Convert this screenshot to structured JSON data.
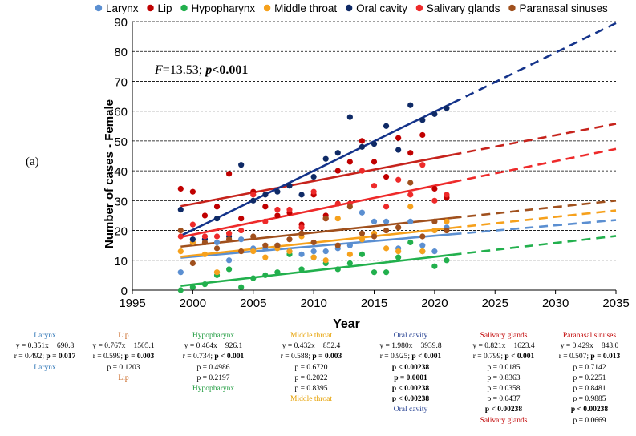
{
  "panel_label": "(a)",
  "chart_data": {
    "type": "scatter",
    "ylabel": "Number of cases - Female",
    "xlabel": "Year",
    "xlim": [
      1995,
      2035
    ],
    "ylim": [
      0,
      90
    ],
    "x_ticks": [
      "1995",
      "2000",
      "2005",
      "2010",
      "2015",
      "2020",
      "2025",
      "2030",
      "2035"
    ],
    "y_ticks": [
      "0",
      "10",
      "20",
      "30",
      "40",
      "50",
      "60",
      "70",
      "80",
      "90"
    ],
    "grid": "horizontal dashed",
    "legend_position": "top",
    "annotation": {
      "f_label": "F",
      "f_value": "=13.53; ",
      "p_label": "p",
      "p_value": "<0.001"
    },
    "series": [
      {
        "name": "Larynx",
        "color": "#5b8fd1",
        "fit_color": "#5b8fd1",
        "slope": 0.351,
        "intercept": -690.8,
        "x": [
          1999,
          2000,
          2001,
          2002,
          2003,
          2004,
          2005,
          2006,
          2007,
          2008,
          2009,
          2010,
          2011,
          2012,
          2013,
          2014,
          2015,
          2016,
          2017,
          2018,
          2019,
          2020,
          2021
        ],
        "y": [
          6,
          16,
          17,
          16,
          10,
          17,
          14,
          14,
          15,
          13,
          12,
          13,
          13,
          14,
          15,
          26,
          23,
          23,
          14,
          23,
          15,
          13,
          21
        ]
      },
      {
        "name": "Lip",
        "color": "#c00000",
        "fit_color": "#c6231c",
        "slope": 0.767,
        "intercept": -1505.1,
        "x": [
          1999,
          2000,
          2001,
          2002,
          2003,
          2004,
          2005,
          2006,
          2007,
          2008,
          2009,
          2010,
          2011,
          2012,
          2013,
          2014,
          2015,
          2016,
          2017,
          2018,
          2019,
          2020,
          2021
        ],
        "y": [
          34,
          33,
          25,
          28,
          39,
          24,
          33,
          28,
          25,
          26,
          22,
          32,
          25,
          40,
          43,
          50,
          43,
          38,
          51,
          46,
          52,
          34,
          31
        ]
      },
      {
        "name": "Hypopharynx",
        "color": "#22b04d",
        "fit_color": "#22b04d",
        "slope": 0.464,
        "intercept": -926.1,
        "x": [
          1999,
          2000,
          2001,
          2002,
          2003,
          2004,
          2005,
          2006,
          2007,
          2008,
          2009,
          2010,
          2011,
          2012,
          2013,
          2014,
          2015,
          2016,
          2017,
          2018,
          2019,
          2020,
          2021
        ],
        "y": [
          0,
          1,
          2,
          5,
          7,
          1,
          4,
          5,
          6,
          12,
          7,
          11,
          9,
          7,
          9,
          12,
          6,
          6,
          11,
          16,
          13,
          8,
          10
        ]
      },
      {
        "name": "Middle throat",
        "color": "#f6a11c",
        "fit_color": "#f6a11c",
        "slope": 0.432,
        "intercept": -852.4,
        "x": [
          1999,
          2000,
          2001,
          2002,
          2003,
          2004,
          2005,
          2006,
          2007,
          2008,
          2009,
          2010,
          2011,
          2012,
          2013,
          2014,
          2015,
          2016,
          2017,
          2018,
          2019,
          2020,
          2021
        ],
        "y": [
          13,
          16,
          12,
          6,
          19,
          13,
          13,
          11,
          14,
          13,
          18,
          11,
          10,
          24,
          12,
          17,
          19,
          14,
          13,
          28,
          13,
          20,
          23
        ]
      },
      {
        "name": "Oral cavity",
        "color": "#0f2a66",
        "fit_color": "#14338a",
        "slope": 1.98,
        "intercept": -3939.8,
        "x": [
          1999,
          2000,
          2001,
          2002,
          2003,
          2004,
          2005,
          2006,
          2007,
          2008,
          2009,
          2010,
          2011,
          2012,
          2013,
          2014,
          2015,
          2016,
          2017,
          2018,
          2019,
          2020,
          2021
        ],
        "y": [
          27,
          17,
          17,
          24,
          18,
          42,
          30,
          32,
          33,
          35,
          32,
          38,
          44,
          46,
          58,
          48,
          49,
          55,
          47,
          62,
          57,
          59,
          61
        ]
      },
      {
        "name": "Salivary glands",
        "color": "#ee2a2a",
        "fit_color": "#ee2a2a",
        "slope": 0.821,
        "intercept": -1623.4,
        "x": [
          1999,
          2000,
          2001,
          2002,
          2003,
          2004,
          2005,
          2006,
          2007,
          2008,
          2009,
          2010,
          2011,
          2012,
          2013,
          2014,
          2015,
          2016,
          2017,
          2018,
          2019,
          2020,
          2021
        ],
        "y": [
          18,
          22,
          18,
          18,
          19,
          20,
          32,
          23,
          27,
          27,
          21,
          33,
          24,
          29,
          29,
          40,
          35,
          28,
          37,
          32,
          42,
          30,
          32
        ]
      },
      {
        "name": "Paranasal sinuses",
        "color": "#a0501d",
        "fit_color": "#a0501d",
        "slope": 0.429,
        "intercept": -843.0,
        "x": [
          1999,
          2000,
          2001,
          2002,
          2003,
          2004,
          2005,
          2006,
          2007,
          2008,
          2009,
          2010,
          2011,
          2012,
          2013,
          2014,
          2015,
          2016,
          2017,
          2018,
          2019,
          2020,
          2021
        ],
        "y": [
          20,
          9,
          16,
          14,
          17,
          13,
          18,
          15,
          15,
          17,
          19,
          16,
          24,
          15,
          28,
          19,
          18,
          20,
          21,
          36,
          18,
          23,
          20
        ]
      }
    ]
  },
  "stats": [
    {
      "name": "Larynx",
      "color": "#2e75b6",
      "eq": "y = 0.351x − 690.8",
      "r": "r = 0.492; ",
      "p": "p = 0.017",
      "footer": "Larynx",
      "rows": []
    },
    {
      "name": "Lip",
      "color": "#c55a11",
      "eq": "y = 0.767x − 1505.1",
      "r": "r = 0.599; ",
      "p": "p = 0.003",
      "footer": "Lip",
      "rows": [
        "p = 0.1203"
      ]
    },
    {
      "name": "Hypopharynx",
      "color": "#1e9b3e",
      "eq": "y = 0.464x − 926.1",
      "r": "r = 0.734; ",
      "p": "p < 0.001",
      "footer": "Hypopharynx",
      "rows": [
        "p = 0.4986",
        "p = 0.2197"
      ]
    },
    {
      "name": "Middle throat",
      "color": "#e6a000",
      "eq": "y = 0.432x − 852.4",
      "r": "r = 0.588; ",
      "p": "p = 0.003",
      "footer": "Middle throat",
      "rows": [
        "p = 0.6720",
        "p = 0.2022",
        "p = 0.8395"
      ]
    },
    {
      "name": "Oral cavity",
      "color": "#1f3b8f",
      "eq": "y = 1.980x − 3939.8",
      "r": "r = 0.925; ",
      "p": "p < 0.001",
      "footer": "Oral cavity",
      "rows": [
        "p < 0.00238",
        "p = 0.0001",
        "p < 0.00238",
        "p < 0.00238"
      ]
    },
    {
      "name": "Salivary glands",
      "color": "#c00000",
      "eq": "y = 0.821x − 1623.4",
      "r": "r = 0.799; ",
      "p": "p < 0.001",
      "footer": "Salivary glands",
      "rows": [
        "p = 0.0185",
        "p = 0.8363",
        "p = 0.0358",
        "p = 0.0437",
        "p < 0.00238"
      ]
    },
    {
      "name": "Paranasal sinuses",
      "color": "#c00000",
      "eq": "y = 0.429x − 843.0",
      "r": "r = 0.507; ",
      "p": "p = 0.013",
      "footer": "",
      "rows": [
        "p = 0.7142",
        "p = 0.2251",
        "p = 0.8481",
        "p = 0.9885",
        "p < 0.00238",
        "p = 0.0669"
      ]
    }
  ]
}
